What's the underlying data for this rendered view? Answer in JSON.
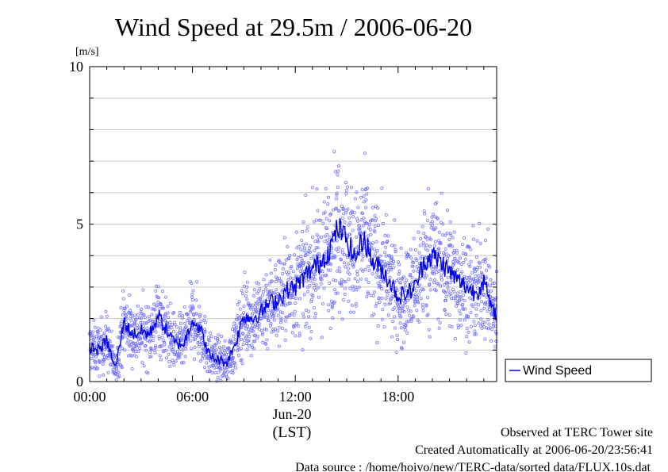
{
  "chart_data": {
    "type": "line",
    "title": "Wind Speed at 29.5m / 2006-06-20",
    "ylabel": "[m/s]",
    "xlabel": "(LST)",
    "date_label": "Jun-20",
    "ylim": [
      0,
      10
    ],
    "xlim": [
      0,
      23.75
    ],
    "y_ticks": [
      0,
      5,
      10
    ],
    "y_tick_labels": [
      "0",
      "5",
      "10"
    ],
    "x_ticks": [
      0,
      6,
      12,
      18
    ],
    "x_tick_labels": [
      "00:00",
      "06:00",
      "12:00",
      "18:00"
    ],
    "grid": true,
    "legend_position": "right",
    "series": [
      {
        "name": "Wind Speed",
        "color": "#0000ee",
        "scatter_color": "#7777ff",
        "x": [
          0,
          0.5,
          1,
          1.5,
          2,
          2.5,
          3,
          3.5,
          4,
          4.5,
          5,
          5.5,
          6,
          6.5,
          7,
          7.5,
          8,
          8.5,
          9,
          9.5,
          10,
          10.5,
          11,
          11.5,
          12,
          12.5,
          13,
          13.5,
          14,
          14.5,
          15,
          15.5,
          16,
          16.5,
          17,
          17.5,
          18,
          18.5,
          19,
          19.5,
          20,
          20.5,
          21,
          21.5,
          22,
          22.5,
          23,
          23.5
        ],
        "values": [
          1.1,
          1.0,
          1.3,
          0.4,
          1.9,
          1.5,
          1.6,
          1.5,
          2.1,
          1.6,
          1.2,
          1.2,
          2.0,
          1.6,
          0.8,
          0.7,
          0.6,
          1.2,
          2.1,
          2.0,
          2.2,
          2.5,
          2.6,
          2.9,
          3.0,
          3.3,
          3.6,
          3.8,
          4.2,
          4.9,
          4.5,
          3.9,
          4.6,
          3.8,
          3.6,
          3.2,
          2.7,
          2.8,
          3.0,
          3.8,
          4.0,
          3.8,
          3.5,
          3.2,
          3.0,
          2.8,
          3.2,
          2.2
        ]
      }
    ]
  },
  "footer": {
    "line1": "Observed at TERC Tower site",
    "line2": "Created Automatically at 2006-06-20/23:56:41",
    "line3": "Data source : /home/hoivo/new/TERC-data/sorted  data/FLUX.10s.dat"
  }
}
